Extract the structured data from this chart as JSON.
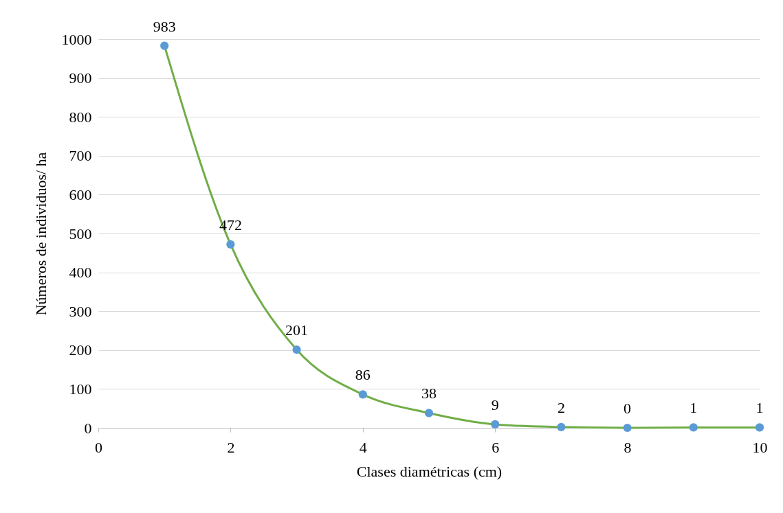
{
  "chart_data": {
    "type": "line",
    "xlabel": "Clases diamétricas (cm)",
    "ylabel": "Números de individuos/ ha",
    "x": [
      1,
      2,
      3,
      4,
      5,
      6,
      7,
      8,
      9,
      10
    ],
    "series": [
      {
        "color": "#70ad47",
        "colors": [
          "#5b9bd5",
          "#5b9bd5",
          "#5b9bd5",
          "#5b9bd5",
          "#5b9bd5",
          "#5b9bd5",
          "#5b9bd5",
          "#5b9bd5",
          "#5b9bd5",
          "#5b9bd5"
        ],
        "values": [
          983,
          472,
          201,
          86,
          38,
          9,
          2,
          0,
          1,
          1
        ]
      }
    ],
    "xlim": [
      0,
      10
    ],
    "xticks": [
      0,
      2,
      4,
      6,
      8,
      10
    ],
    "ylim": [
      0,
      1000
    ],
    "yticks": [
      0,
      100,
      200,
      300,
      400,
      500,
      600,
      700,
      800,
      900,
      1000
    ],
    "grid": "y",
    "marker": "circle",
    "line_style": "solid",
    "data_labels": true
  }
}
